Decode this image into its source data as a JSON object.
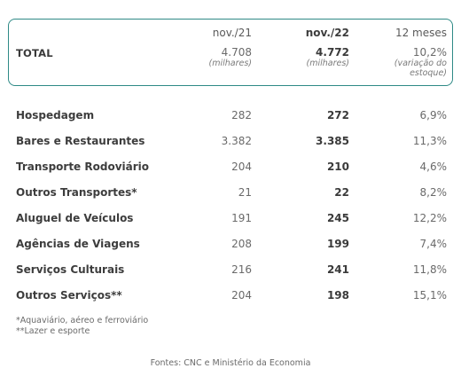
{
  "header": {
    "col1": "nov./21",
    "col2": "nov./22",
    "col3": "12 meses"
  },
  "total": {
    "label": "TOTAL",
    "v1": "4.708",
    "v1_unit": "(milhares)",
    "v2": "4.772",
    "v2_unit": "(milhares)",
    "v3": "10,2%",
    "v3_note_line1": "(variação do",
    "v3_note_line2": "estoque)"
  },
  "rows": [
    {
      "name": "Hospedagem",
      "v1": "282",
      "v2": "272",
      "v3": "6,9%"
    },
    {
      "name": "Bares e Restaurantes",
      "v1": "3.382",
      "v2": "3.385",
      "v3": "11,3%"
    },
    {
      "name": "Transporte Rodoviário",
      "v1": "204",
      "v2": "210",
      "v3": "4,6%"
    },
    {
      "name": "Outros Transportes*",
      "v1": "21",
      "v2": "22",
      "v3": "8,2%"
    },
    {
      "name": "Aluguel de Veículos",
      "v1": "191",
      "v2": "245",
      "v3": "12,2%"
    },
    {
      "name": "Agências de Viagens",
      "v1": "208",
      "v2": "199",
      "v3": "7,4%"
    },
    {
      "name": "Serviços Culturais",
      "v1": "216",
      "v2": "241",
      "v3": "11,8%"
    },
    {
      "name": "Outros Serviços**",
      "v1": "204",
      "v2": "198",
      "v3": "15,1%"
    }
  ],
  "notes": {
    "line1": "*Aquaviário, aéreo e ferroviário",
    "line2": "**Lazer e esporte"
  },
  "source": "Fontes: CNC e Ministério da Economia",
  "colors": {
    "box_border": "#2f8a86"
  }
}
